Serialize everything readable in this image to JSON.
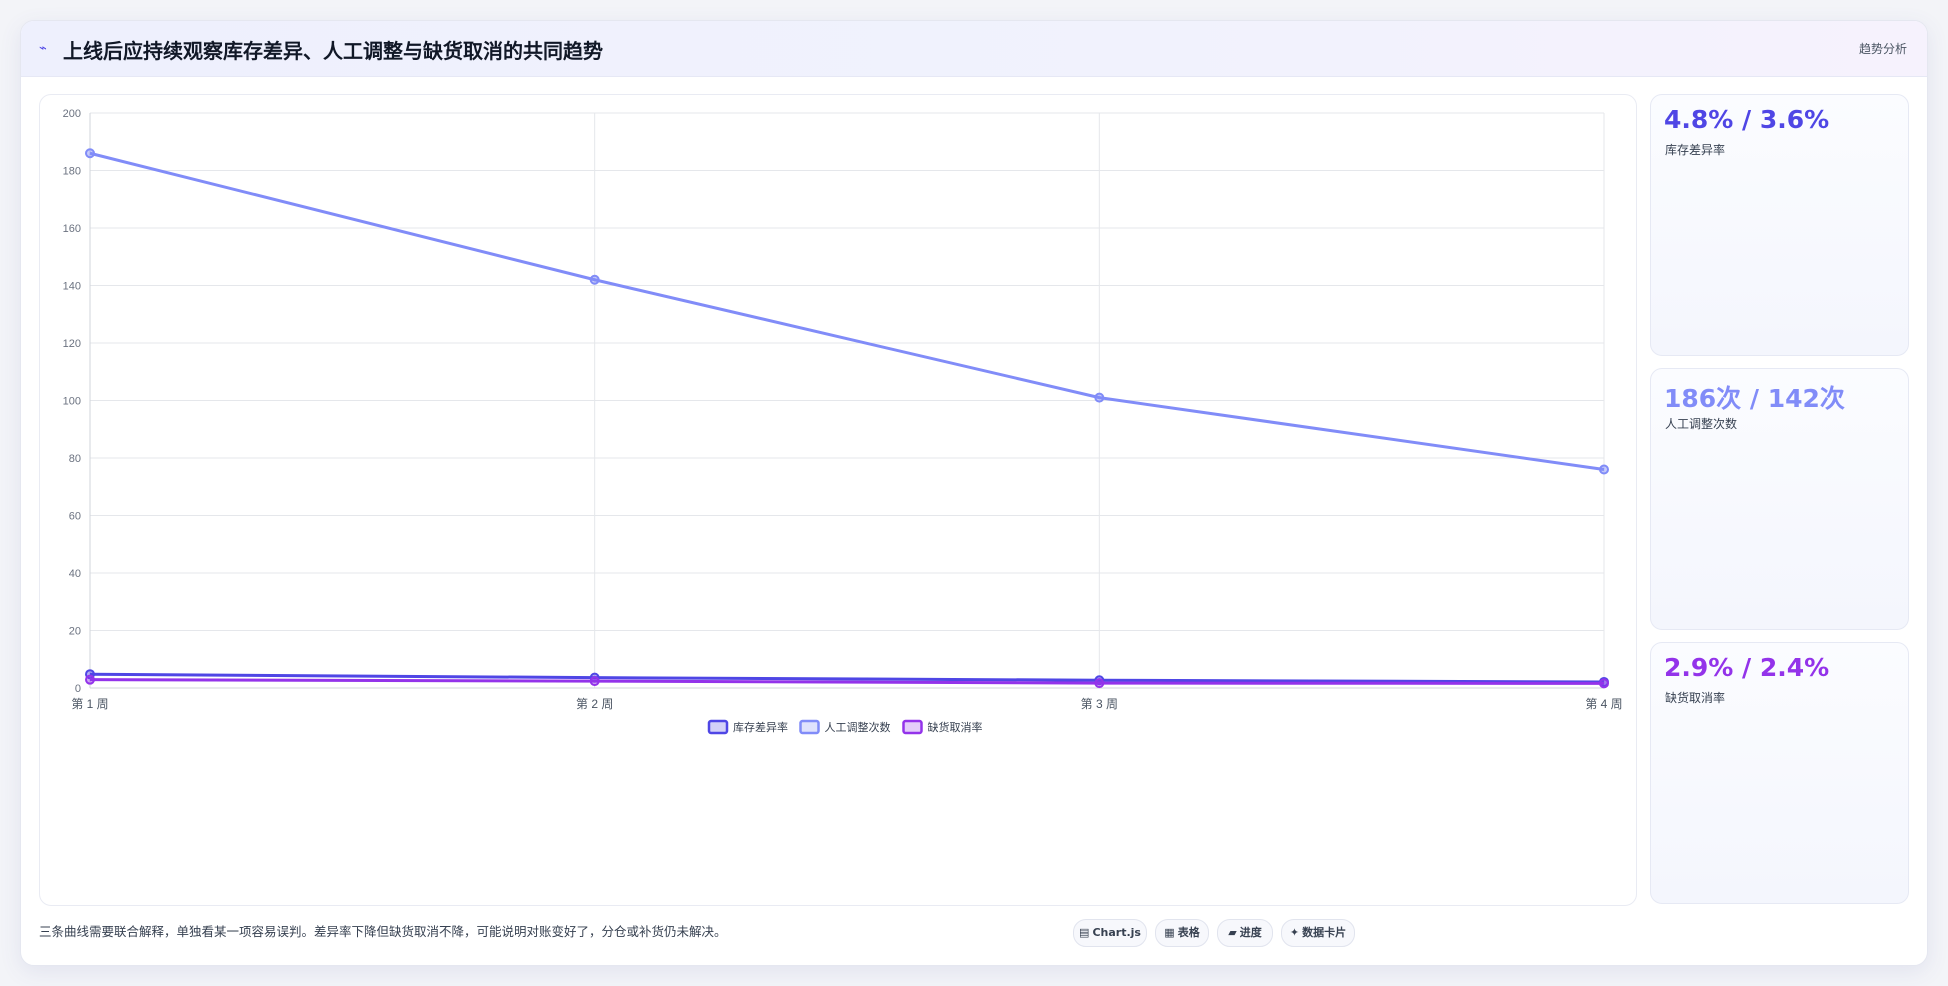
{
  "header": {
    "icon": "chart-trend-icon",
    "title": "上线后应持续观察库存差异、人工调整与缺货取消的共同趋势",
    "tag": "趋势分析"
  },
  "stats": [
    {
      "value": "4.8% / 3.6%",
      "label": "库存差异率",
      "color": "#4f46e5"
    },
    {
      "value": "186次 / 142次",
      "label": "人工调整次数",
      "color": "#818cf8"
    },
    {
      "value": "2.9% / 2.4%",
      "label": "缺货取消率",
      "color": "#9333ea"
    }
  ],
  "footnote": "三条曲线需要联合解释，单独看某一项容易误判。差异率下降但缺货取消不降，可能说明对账变好了，分仓或补货仍未解决。",
  "chips": [
    {
      "icon": "chart-icon",
      "glyph": "▤",
      "label": "Chart.js"
    },
    {
      "icon": "table-icon",
      "glyph": "▦",
      "label": "表格"
    },
    {
      "icon": "progress-icon",
      "glyph": "▰",
      "label": "进度"
    },
    {
      "icon": "data-card-icon",
      "glyph": "✦",
      "label": "数据卡片"
    }
  ],
  "chart_data": {
    "type": "line",
    "categories": [
      "第 1 周",
      "第 2 周",
      "第 3 周",
      "第 4 周"
    ],
    "series": [
      {
        "name": "库存差异率",
        "values": [
          4.8,
          3.6,
          2.7,
          2.1
        ],
        "color": "#4f46e5"
      },
      {
        "name": "人工调整次数",
        "values": [
          186,
          142,
          101,
          76
        ],
        "color": "#818cf8"
      },
      {
        "name": "缺货取消率",
        "values": [
          2.9,
          2.4,
          1.7,
          1.6
        ],
        "color": "#9333ea"
      }
    ],
    "ylim": [
      0,
      200
    ],
    "yticks": [
      0,
      20,
      40,
      60,
      80,
      100,
      120,
      140,
      160,
      180,
      200
    ],
    "grid": true,
    "legend": "bottom-center"
  }
}
